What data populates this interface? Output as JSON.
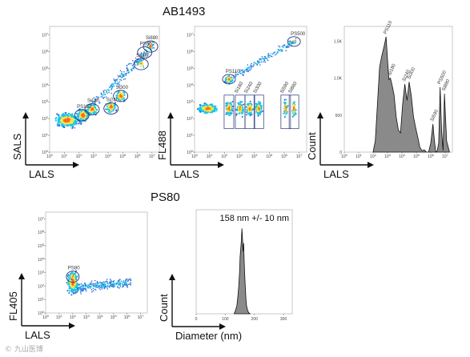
{
  "section_titles": {
    "top": "AB1493",
    "bottom": "PS80"
  },
  "watermark": "© 九山医博",
  "colors": {
    "density_low": "#2e6fd8",
    "density_mid": "#18c6e8",
    "density_high": "#f2e64a",
    "density_peak": "#ff6a1a",
    "gate": "#223377",
    "hist_fill": "#8a8a8a",
    "hist_line": "#111111"
  },
  "chart_data": [
    {
      "id": "ab_sals_lals",
      "type": "scatter",
      "xlabel": "LALS",
      "ylabel": "SALS",
      "xticks": [
        "10^0",
        "10^1",
        "10^2",
        "10^3",
        "10^4",
        "10^5",
        "10^6",
        "10^7"
      ],
      "yticks": [
        "10^0",
        "10^1",
        "10^2",
        "10^3",
        "10^4",
        "10^5",
        "10^6",
        "10^7"
      ],
      "xlim": [
        0,
        7.5
      ],
      "ylim": [
        0,
        7.5
      ],
      "xscale": "log",
      "yscale": "log",
      "gates": [
        {
          "label": "PS110",
          "x": 2.2,
          "y": 2.2
        },
        {
          "label": "Si180",
          "x": 2.9,
          "y": 2.55
        },
        {
          "label": "Si240",
          "x": 4.2,
          "y": 2.6
        },
        {
          "label": "Si300",
          "x": 4.85,
          "y": 3.35
        },
        {
          "label": "Si590",
          "x": 6.25,
          "y": 5.25
        },
        {
          "label": "Si880",
          "x": 6.9,
          "y": 6.3
        },
        {
          "label": "PS500",
          "x": 6.5,
          "y": 5.95
        }
      ]
    },
    {
      "id": "ab_fl488_lals",
      "type": "scatter",
      "xlabel": "LALS",
      "ylabel": "FL488",
      "xticks": [
        "10^0",
        "10^1",
        "10^2",
        "10^3",
        "10^4",
        "10^5",
        "10^6",
        "10^7"
      ],
      "yticks": [
        "10^0",
        "10^1",
        "10^2",
        "10^3",
        "10^4",
        "10^5",
        "10^6",
        "10^7"
      ],
      "xlim": [
        0,
        7.5
      ],
      "ylim": [
        0,
        7.5
      ],
      "xscale": "log",
      "yscale": "log",
      "gates": [
        {
          "label": "PS110",
          "x": 2.3,
          "y": 4.35
        },
        {
          "label": "Si180",
          "x": 3.05,
          "y": 2.6
        },
        {
          "label": "Si240",
          "x": 3.7,
          "y": 2.6
        },
        {
          "label": "Si300",
          "x": 4.3,
          "y": 2.6
        },
        {
          "label": "Si590",
          "x": 6.1,
          "y": 2.6
        },
        {
          "label": "Si880",
          "x": 6.65,
          "y": 2.6
        },
        {
          "label": "PS500",
          "x": 6.65,
          "y": 6.6
        }
      ]
    },
    {
      "id": "ab_hist_lals",
      "type": "area",
      "xlabel": "LALS",
      "ylabel": "Count",
      "xticks": [
        "10^0",
        "10^1",
        "10^2",
        "10^3",
        "10^4",
        "10^5",
        "10^6",
        "10^7"
      ],
      "yticks": [
        "0",
        "500",
        "1.0K",
        "1.5K"
      ],
      "ytick_values": [
        0,
        500,
        1000,
        1500
      ],
      "xlim": [
        0,
        7.5
      ],
      "ylim": [
        0,
        1700
      ],
      "xscale": "log",
      "x": [
        2.0,
        2.15,
        2.3,
        2.45,
        2.6,
        2.75,
        2.9,
        3.0,
        3.1,
        3.2,
        3.3,
        3.45,
        3.6,
        3.75,
        3.9,
        4.05,
        4.2,
        4.35,
        4.5,
        4.65,
        4.8,
        4.95,
        5.1,
        5.25,
        5.4,
        5.55,
        5.7,
        5.85,
        6.0,
        6.15,
        6.25,
        6.35,
        6.45,
        6.55,
        6.65,
        6.75,
        6.85,
        6.95,
        7.1,
        7.3
      ],
      "values": [
        0,
        150,
        650,
        1150,
        1300,
        1420,
        1560,
        1250,
        980,
        1000,
        920,
        780,
        480,
        300,
        260,
        650,
        920,
        700,
        950,
        760,
        480,
        330,
        200,
        60,
        20,
        30,
        0,
        0,
        120,
        380,
        160,
        0,
        20,
        120,
        880,
        300,
        20,
        790,
        150,
        0
      ],
      "peak_labels": [
        {
          "label": "PS110",
          "x": 2.9
        },
        {
          "label": "Si180",
          "x": 3.2
        },
        {
          "label": "Si240",
          "x": 4.2
        },
        {
          "label": "Si300",
          "x": 4.55
        },
        {
          "label": "Si590",
          "x": 6.15
        },
        {
          "label": "PS500",
          "x": 6.65
        },
        {
          "label": "Si880",
          "x": 6.95
        }
      ]
    },
    {
      "id": "ps80_fl405_lals",
      "type": "scatter",
      "xlabel": "LALS",
      "ylabel": "FL405",
      "xticks": [
        "10^0",
        "10^1",
        "10^2",
        "10^3",
        "10^4",
        "10^5",
        "10^6",
        "10^7"
      ],
      "yticks": [
        "10^0",
        "10^1",
        "10^2",
        "10^3",
        "10^4",
        "10^5",
        "10^6",
        "10^7"
      ],
      "xlim": [
        0,
        7.5
      ],
      "ylim": [
        0,
        7.5
      ],
      "xscale": "log",
      "yscale": "log",
      "gates": [
        {
          "label": "PS80",
          "x": 2.0,
          "y": 2.7
        }
      ]
    },
    {
      "id": "ps80_hist_diameter",
      "type": "area",
      "xlabel": "Diameter (nm)",
      "ylabel": "Count",
      "xticks": [
        "0",
        "100",
        "200",
        "300"
      ],
      "xtick_values": [
        0,
        100,
        200,
        300
      ],
      "xlim": [
        0,
        330
      ],
      "ylim": [
        0,
        100
      ],
      "annotation": "158 nm +/- 10 nm",
      "x": [
        130,
        135,
        140,
        143,
        146,
        149,
        151,
        153,
        155,
        157,
        159,
        161,
        163,
        165,
        167,
        169,
        171,
        173,
        176,
        180,
        186
      ],
      "values": [
        0,
        3,
        8,
        16,
        26,
        40,
        55,
        62,
        70,
        82,
        74,
        60,
        68,
        50,
        36,
        24,
        14,
        8,
        4,
        1,
        0
      ]
    }
  ]
}
